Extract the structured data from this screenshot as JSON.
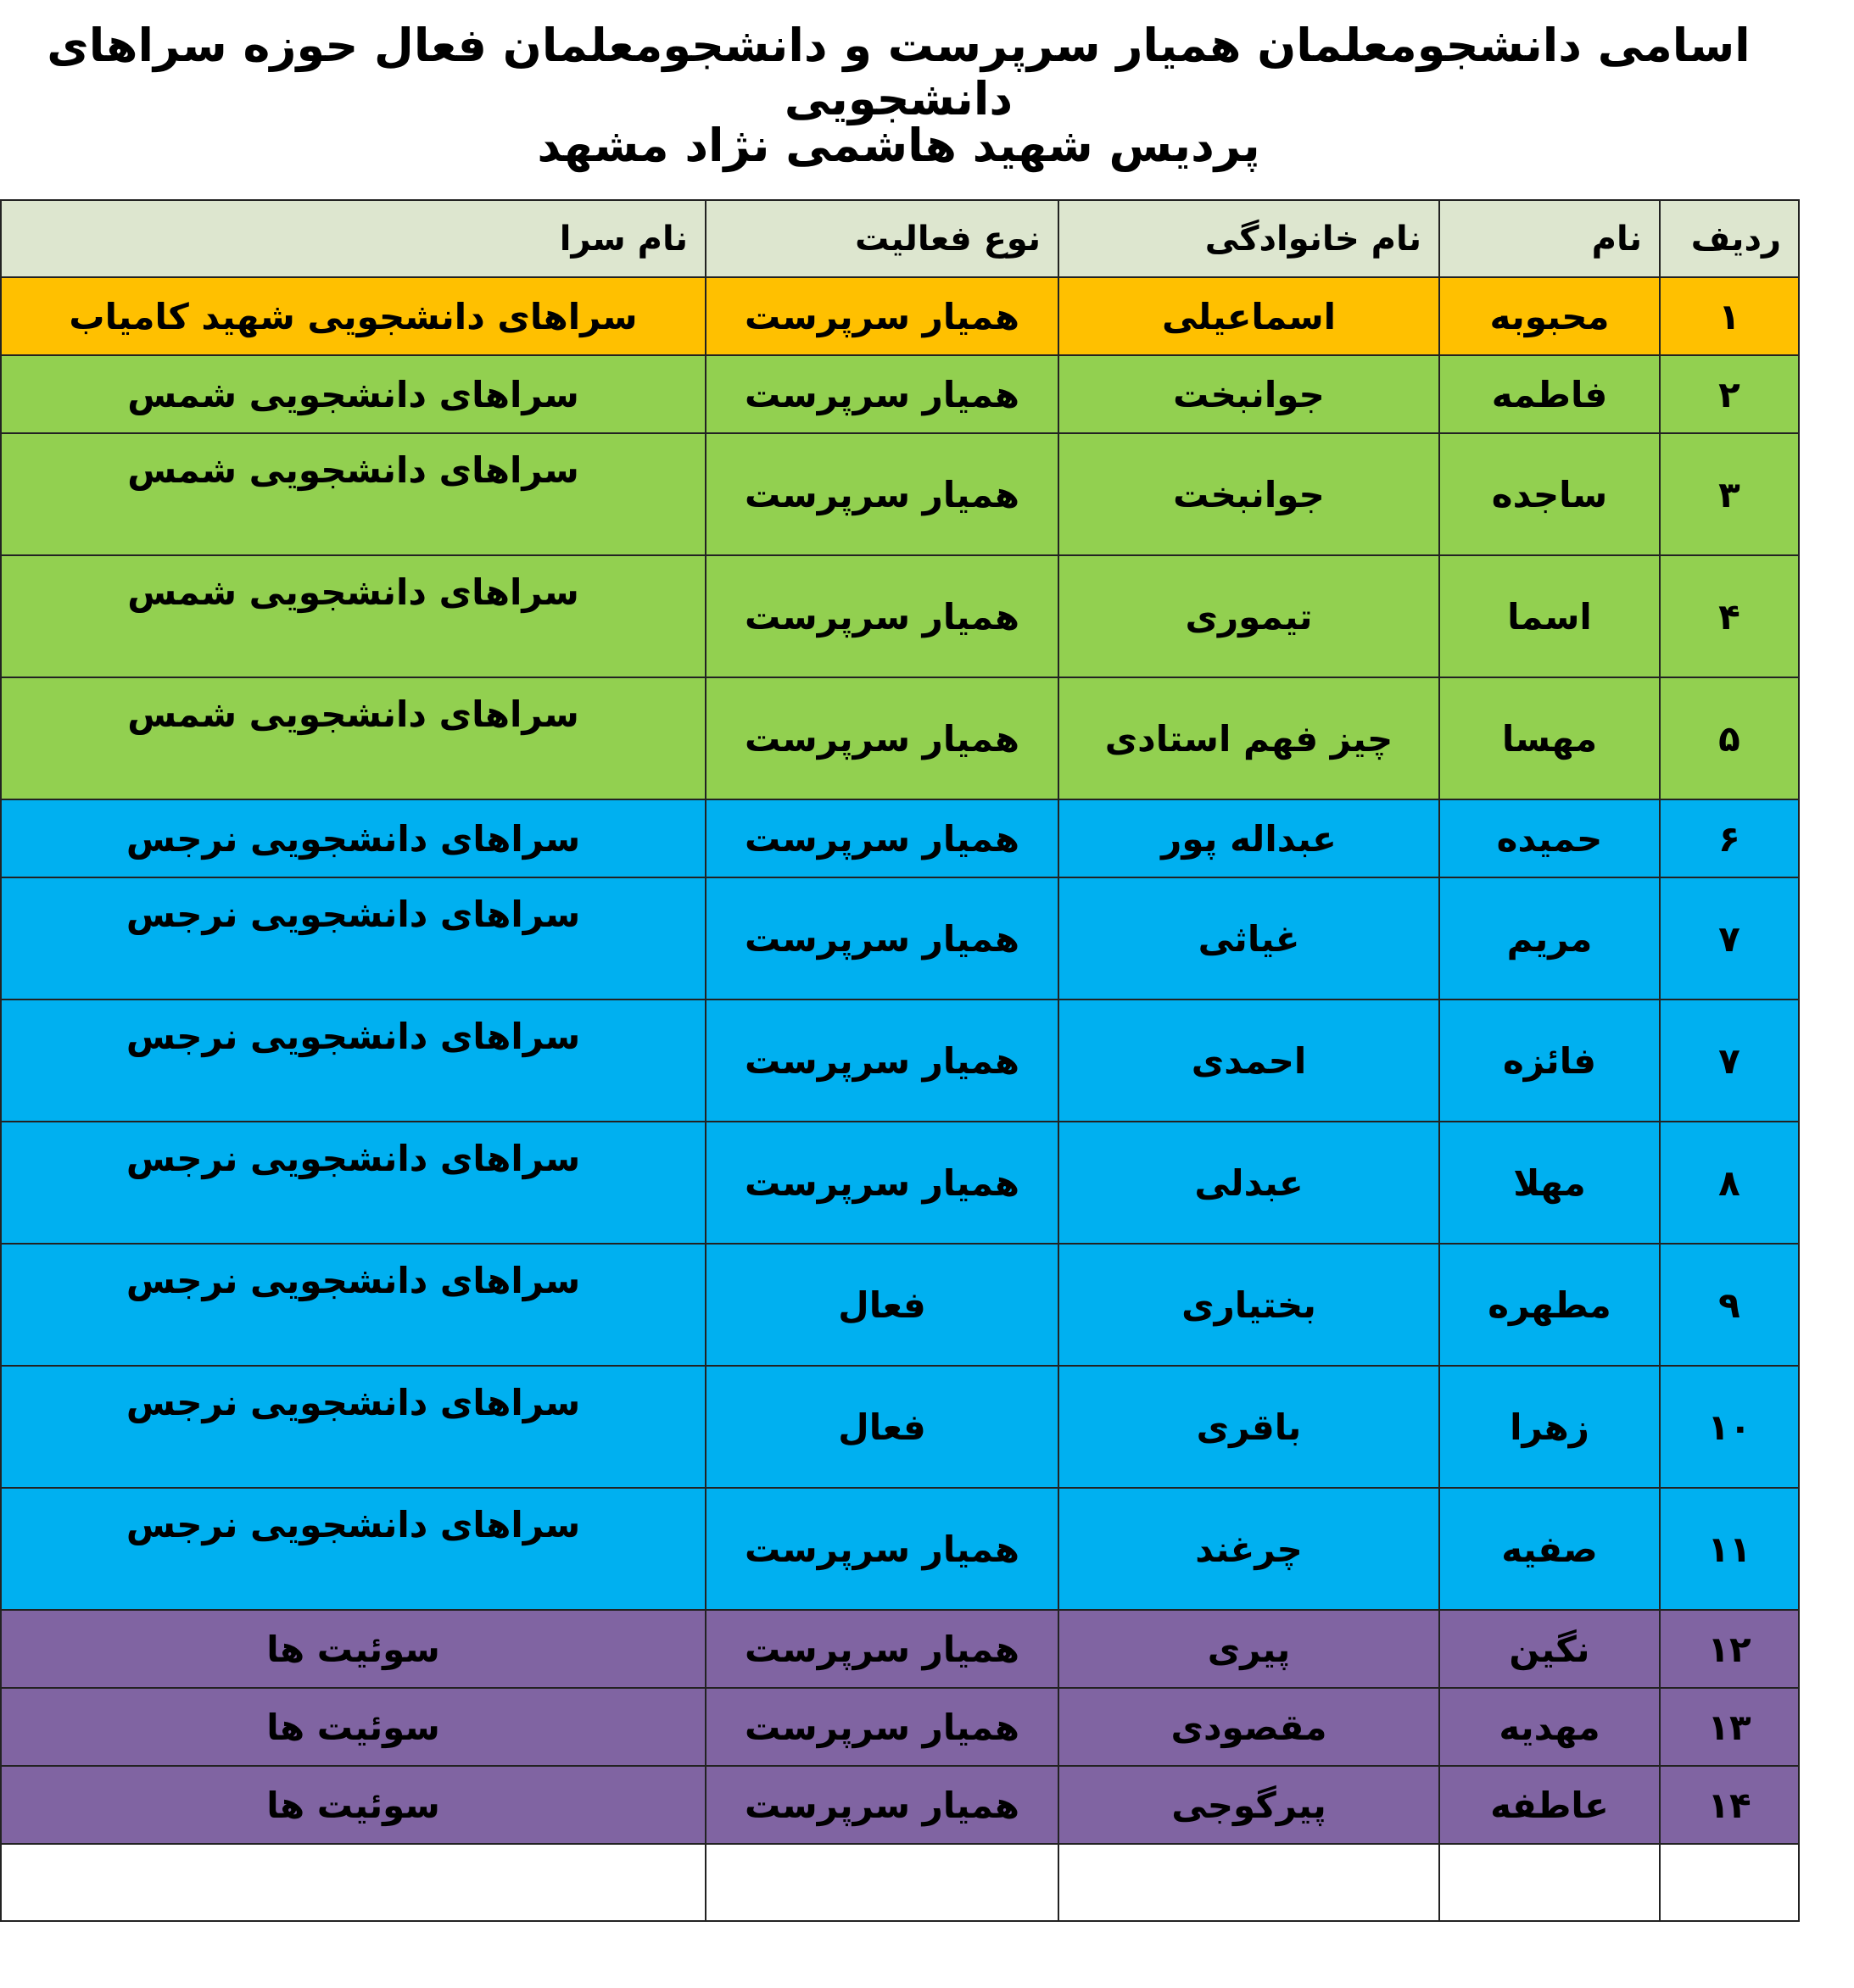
{
  "title": {
    "line1": "اسامی دانشجومعلمان همیار سرپرست و دانشجومعلمان فعال حوزه سراهای دانشجویی",
    "line2": "پردیس شهید هاشمی نژاد مشهد"
  },
  "colors": {
    "header": "#dde6cf",
    "orange": "#ffc000",
    "green": "#92d050",
    "blue": "#00b0f0",
    "purple": "#8064a2"
  },
  "headers": [
    "ردیف",
    "نام",
    "نام خانوادگی",
    "نوع فعالیت",
    "نام سرا"
  ],
  "rows": [
    {
      "num": "۱",
      "first": "محبوبه",
      "last": "اسماعیلی",
      "activity": "همیار سرپرست",
      "sara": "سراهای دانشجویی شهید کامیاب",
      "color": "orange"
    },
    {
      "num": "۲",
      "first": "فاطمه",
      "last": "جوانبخت",
      "activity": "همیار سرپرست",
      "sara": "سراهای دانشجویی شمس",
      "color": "green"
    },
    {
      "num": "۳",
      "first": "ساجده",
      "last": "جوانبخت",
      "activity": "همیار سرپرست",
      "sara": "سراهای دانشجویی شمس",
      "color": "green"
    },
    {
      "num": "۴",
      "first": "اسما",
      "last": "تیموری",
      "activity": "همیار سرپرست",
      "sara": "سراهای دانشجویی شمس",
      "color": "green"
    },
    {
      "num": "۵",
      "first": "مهسا",
      "last": "چیز فهم استادی",
      "activity": "همیار سرپرست",
      "sara": "سراهای دانشجویی شمس",
      "color": "green"
    },
    {
      "num": "۶",
      "first": "حمیده",
      "last": "عبداله پور",
      "activity": "همیار سرپرست",
      "sara": "سراهای دانشجویی نرجس",
      "color": "blue"
    },
    {
      "num": "۷",
      "first": "مریم",
      "last": "غیاثی",
      "activity": "همیار سرپرست",
      "sara": "سراهای دانشجویی نرجس",
      "color": "blue"
    },
    {
      "num": "۷",
      "first": "فائزه",
      "last": "احمدی",
      "activity": "همیار سرپرست",
      "sara": "سراهای دانشجویی نرجس",
      "color": "blue"
    },
    {
      "num": "۸",
      "first": "مهلا",
      "last": "عبدلی",
      "activity": "همیار سرپرست",
      "sara": "سراهای دانشجویی نرجس",
      "color": "blue"
    },
    {
      "num": "۹",
      "first": "مطهره",
      "last": "بختیاری",
      "activity": "فعال",
      "sara": "سراهای دانشجویی نرجس",
      "color": "blue"
    },
    {
      "num": "۱۰",
      "first": "زهرا",
      "last": "باقری",
      "activity": "فعال",
      "sara": "سراهای دانشجویی نرجس",
      "color": "blue"
    },
    {
      "num": "۱۱",
      "first": "صفیه",
      "last": "چرغند",
      "activity": "همیار سرپرست",
      "sara": "سراهای دانشجویی نرجس",
      "color": "blue"
    },
    {
      "num": "۱۲",
      "first": "نگین",
      "last": "پیری",
      "activity": "همیار سرپرست",
      "sara": "سوئیت ها",
      "color": "purple"
    },
    {
      "num": "۱۳",
      "first": "مهدیه",
      "last": "مقصودی",
      "activity": "همیار سرپرست",
      "sara": "سوئیت ها",
      "color": "purple"
    },
    {
      "num": "۱۴",
      "first": "عاطفه",
      "last": "پیرگوجی",
      "activity": "همیار سرپرست",
      "sara": "سوئیت ها",
      "color": "purple"
    }
  ]
}
